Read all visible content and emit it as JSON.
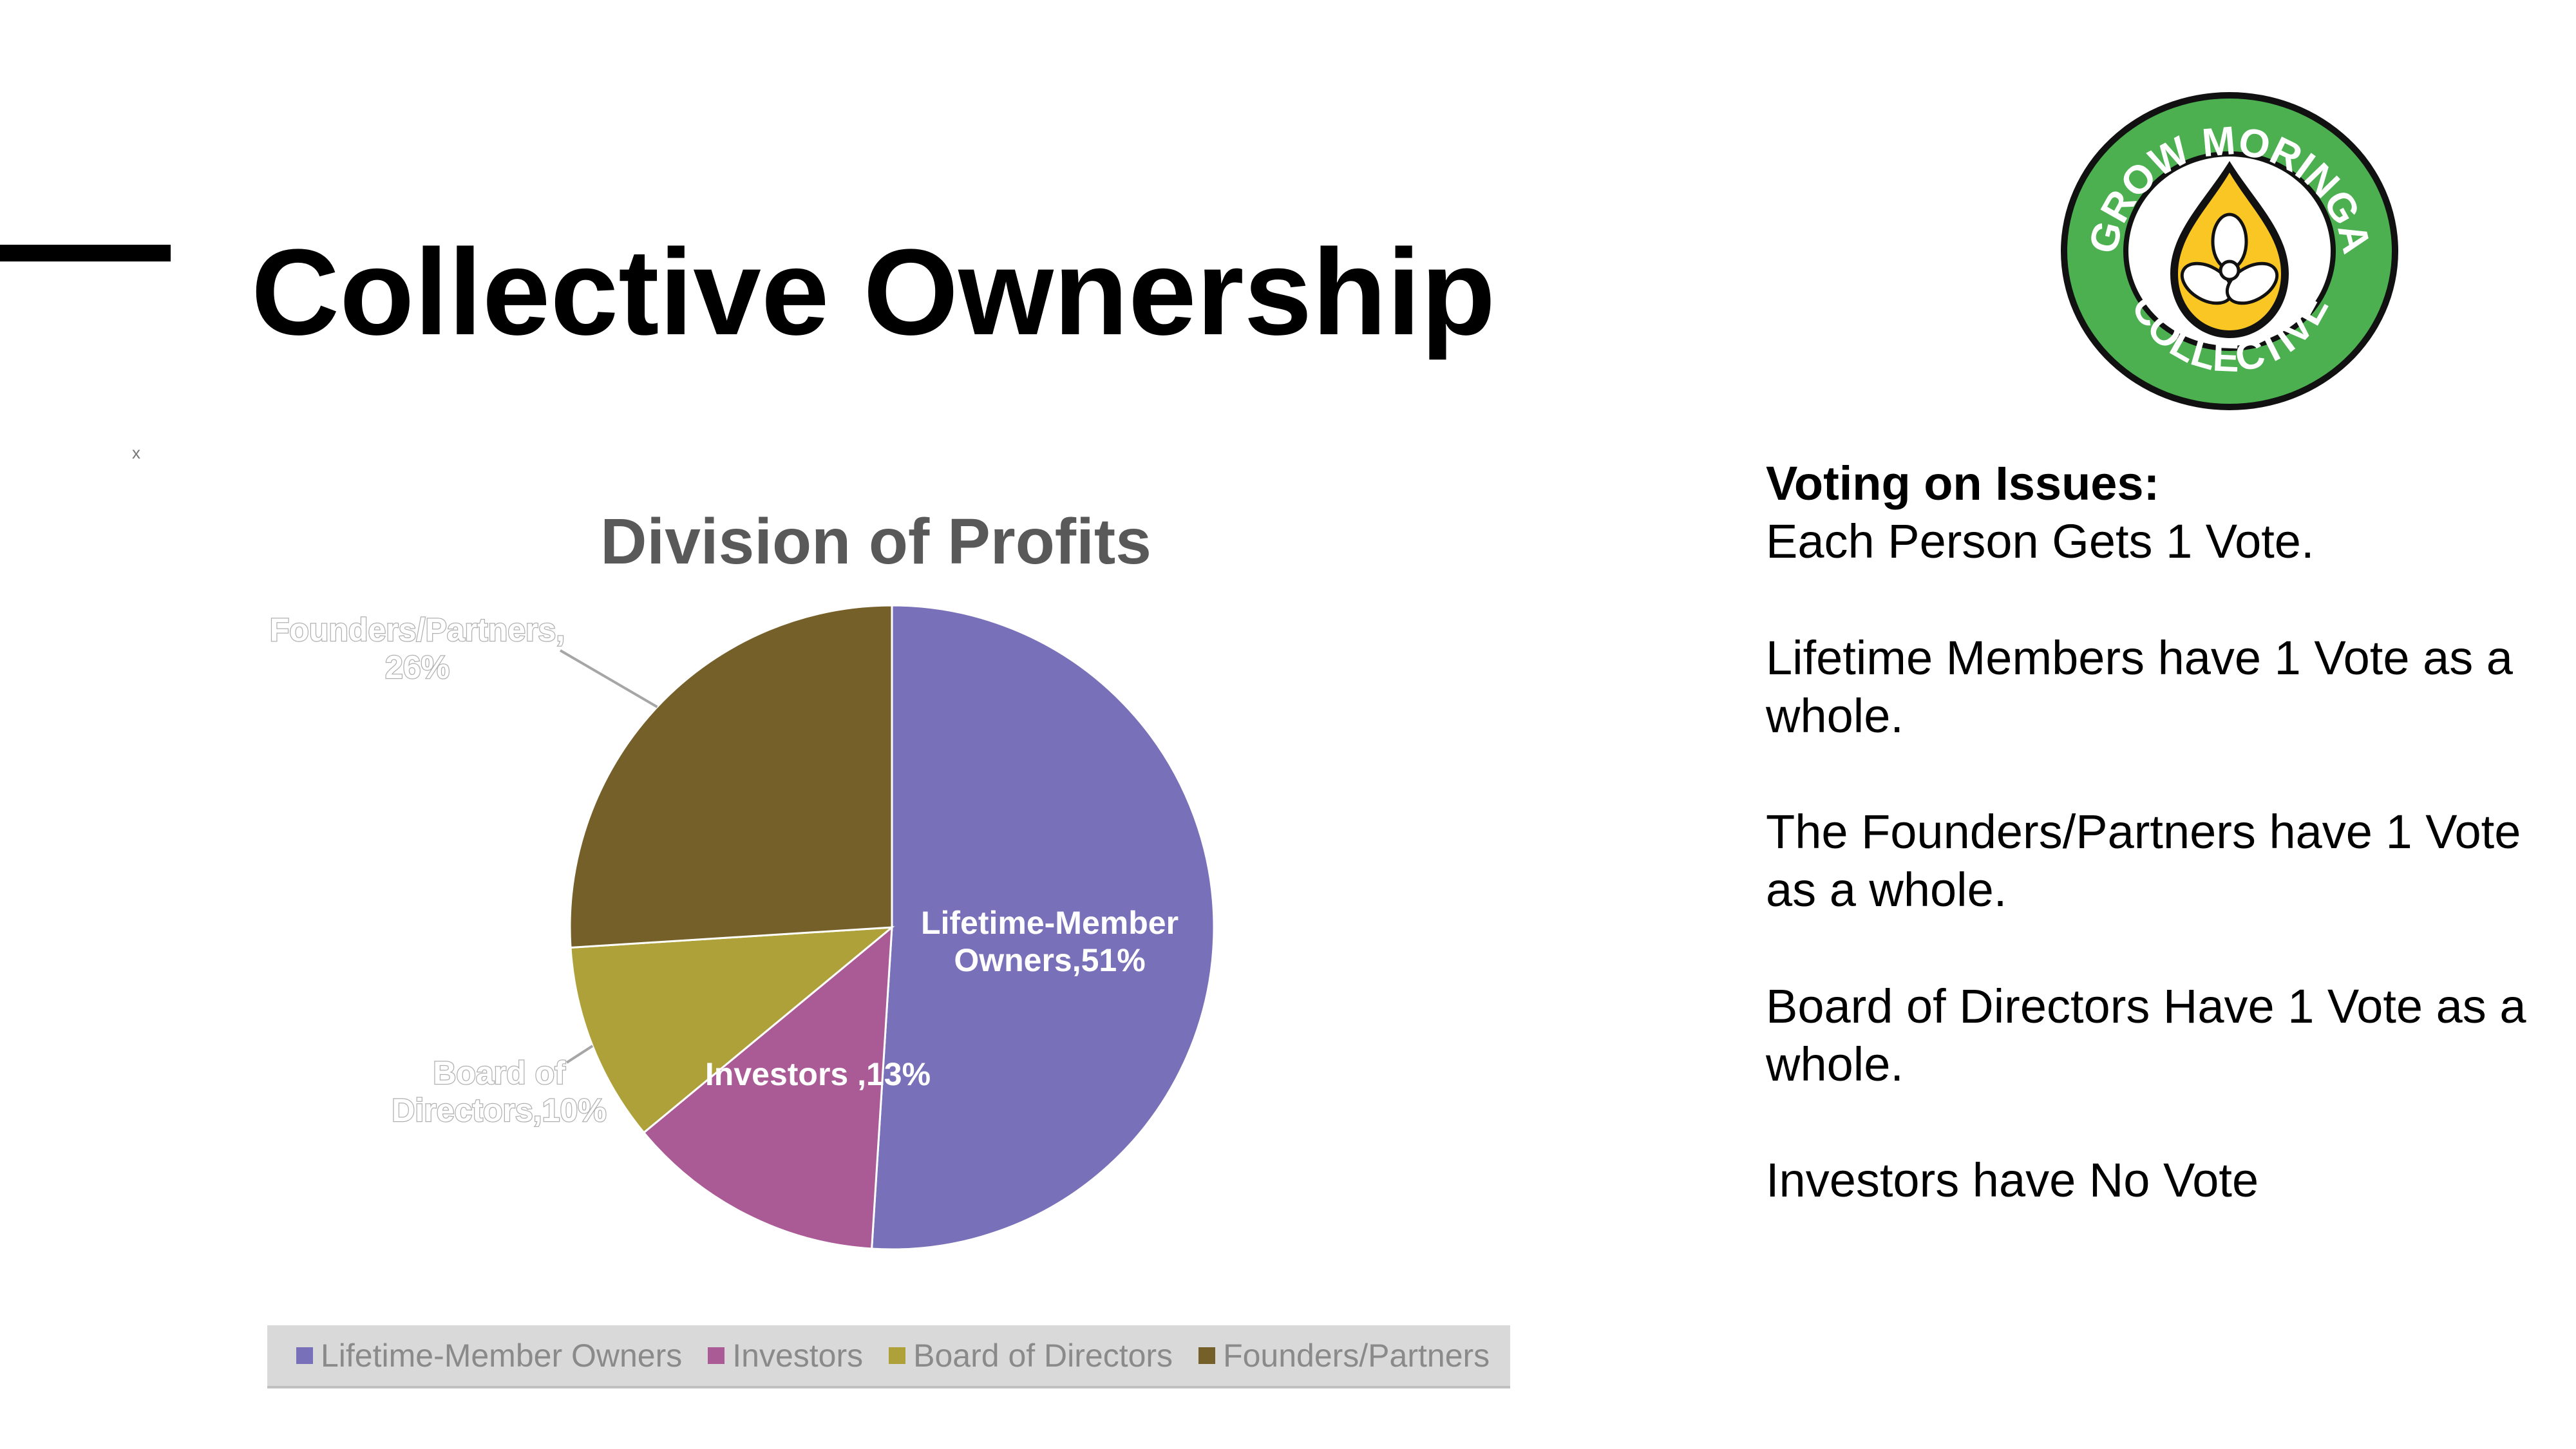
{
  "slide": {
    "title": "Collective Ownership",
    "small_mark": "x"
  },
  "logo": {
    "text_top": "GROW MORINGA",
    "text_bottom": "COLLECTIVE",
    "colors": {
      "ring": "#4caf50",
      "drop": "#f9c623",
      "outline": "#111111"
    }
  },
  "voting": {
    "heading": "Voting on Issues:",
    "lines": [
      "Each Person Gets 1 Vote.",
      "Lifetime Members have 1 Vote as a whole.",
      "The Founders/Partners have 1 Vote as a whole.",
      "Board of Directors Have 1 Vote as a whole.",
      "Investors have No Vote"
    ]
  },
  "chart_data": {
    "type": "pie",
    "title": "Division of Profits",
    "slices": [
      {
        "name": "Lifetime-Member Owners",
        "value": 51,
        "color": "#7870b8",
        "label": "Lifetime-Member Owners,51%"
      },
      {
        "name": "Investors",
        "value": 13,
        "color": "#aa5a94",
        "label": "Investors ,13%"
      },
      {
        "name": "Board of Directors",
        "value": 10,
        "color": "#aea13a",
        "label": "Board of Directors,10%"
      },
      {
        "name": "Founders/Partners",
        "value": 26,
        "color": "#766029",
        "label": "Founders/Partners, 26%"
      }
    ],
    "legend": [
      "Lifetime-Member Owners",
      "Investors",
      "Board of Directors",
      "Founders/Partners"
    ],
    "legend_position": "bottom"
  }
}
